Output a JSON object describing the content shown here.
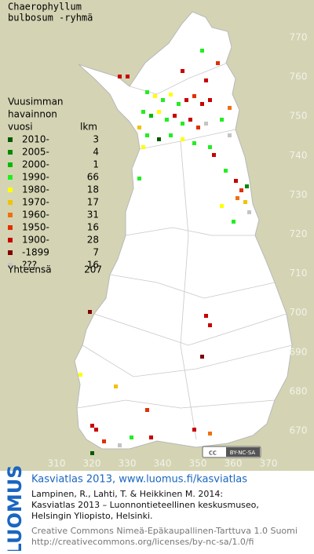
{
  "title": [
    "Chaerophyllum",
    "bulbosum -ryhmä"
  ],
  "legend": {
    "heading": [
      "Vuusimman",
      "havainnon",
      "vuosi"
    ],
    "count_heading": "lkm",
    "entries": [
      {
        "label": "2010-",
        "count": 3,
        "color": "#005a00"
      },
      {
        "label": "2005-",
        "count": 4,
        "color": "#008a00"
      },
      {
        "label": "2000-",
        "count": 1,
        "color": "#00bb00"
      },
      {
        "label": "1990-",
        "count": 66,
        "color": "#22ee22"
      },
      {
        "label": "1980-",
        "count": 18,
        "color": "#ffff00"
      },
      {
        "label": "1970-",
        "count": 17,
        "color": "#f2c200"
      },
      {
        "label": "1960-",
        "count": 31,
        "color": "#f07010"
      },
      {
        "label": "1950-",
        "count": 16,
        "color": "#e03000"
      },
      {
        "label": "1900-",
        "count": 28,
        "color": "#c80000"
      },
      {
        "label": "-1899",
        "count": 7,
        "color": "#800000"
      },
      {
        "label": "???",
        "count": 16,
        "color": "#c4c4c4"
      }
    ],
    "total_label": "Yhteensä",
    "total": 207
  },
  "x_axis": {
    "ticks": [
      310,
      320,
      330,
      340,
      350,
      360,
      370
    ]
  },
  "y_axis": {
    "ticks": [
      770,
      760,
      750,
      740,
      730,
      720,
      710,
      700,
      690,
      680,
      670
    ]
  },
  "license_badge": [
    "cc",
    "BY-NC-SA"
  ],
  "logo": "LUOMUS",
  "footer": {
    "heading": "Kasviatlas 2013, www.luomus.fi/kasviatlas",
    "citation": [
      "Lampinen, R., Lahti, T. & Heikkinen M. 2014:",
      "Kasviatlas 2013 – Luonnontieteellinen keskusmuseo,",
      "Helsingin Yliopisto, Helsinki."
    ],
    "license": [
      "Creative Commons Nimeä-Epäkaupallinen-Tarttuva 1.0 Suomi",
      "http://creativecommons.org/licenses/by-nc-sa/1.0/fi"
    ]
  }
}
